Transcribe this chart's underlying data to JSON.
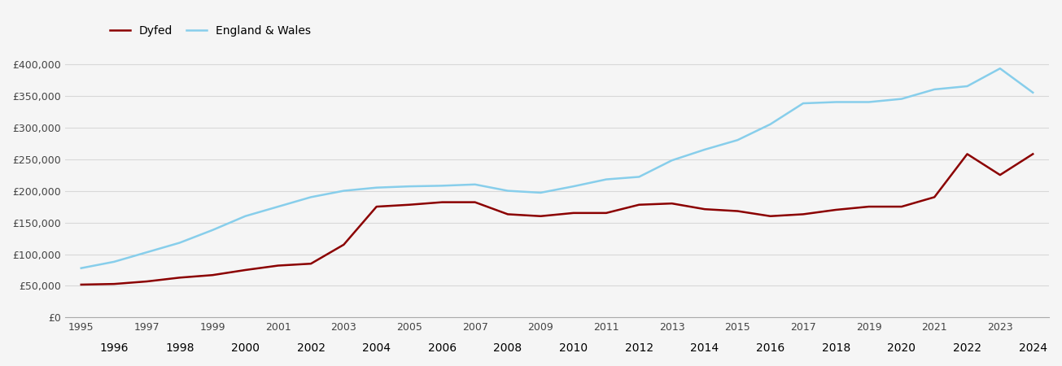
{
  "years": [
    1995,
    1996,
    1997,
    1998,
    1999,
    2000,
    2001,
    2002,
    2003,
    2004,
    2005,
    2006,
    2007,
    2008,
    2009,
    2010,
    2011,
    2012,
    2013,
    2014,
    2015,
    2016,
    2017,
    2018,
    2019,
    2020,
    2021,
    2022,
    2023,
    2024
  ],
  "dyfed": [
    52000,
    53000,
    57000,
    63000,
    67000,
    75000,
    82000,
    85000,
    115000,
    175000,
    178000,
    182000,
    182000,
    163000,
    160000,
    165000,
    165000,
    178000,
    180000,
    171000,
    168000,
    160000,
    163000,
    170000,
    175000,
    175000,
    190000,
    258000,
    225000,
    258000
  ],
  "england_wales": [
    78000,
    88000,
    103000,
    118000,
    138000,
    160000,
    175000,
    190000,
    200000,
    205000,
    207000,
    208000,
    210000,
    200000,
    197000,
    207000,
    218000,
    222000,
    248000,
    265000,
    280000,
    305000,
    338000,
    340000,
    340000,
    345000,
    360000,
    365000,
    393000,
    355000
  ],
  "dyfed_color": "#8B0000",
  "england_wales_color": "#87CEEB",
  "background_color": "#f5f5f5",
  "plot_bg_color": "#f5f5f5",
  "grid_color": "#d8d8d8",
  "ylim": [
    0,
    420000
  ],
  "yticks": [
    0,
    50000,
    100000,
    150000,
    200000,
    250000,
    300000,
    350000,
    400000
  ],
  "ytick_labels": [
    "£0",
    "£50,000",
    "£100,000",
    "£150,000",
    "£200,000",
    "£250,000",
    "£300,000",
    "£350,000",
    "£400,000"
  ],
  "xlim_min": 1994.5,
  "xlim_max": 2024.5,
  "line_width": 1.8,
  "legend_dyfed": "Dyfed",
  "legend_ew": "England & Wales",
  "odd_years": [
    1995,
    1997,
    1999,
    2001,
    2003,
    2005,
    2007,
    2009,
    2011,
    2013,
    2015,
    2017,
    2019,
    2021,
    2023
  ],
  "even_years": [
    1996,
    1998,
    2000,
    2002,
    2004,
    2006,
    2008,
    2010,
    2012,
    2014,
    2016,
    2018,
    2020,
    2022,
    2024
  ]
}
